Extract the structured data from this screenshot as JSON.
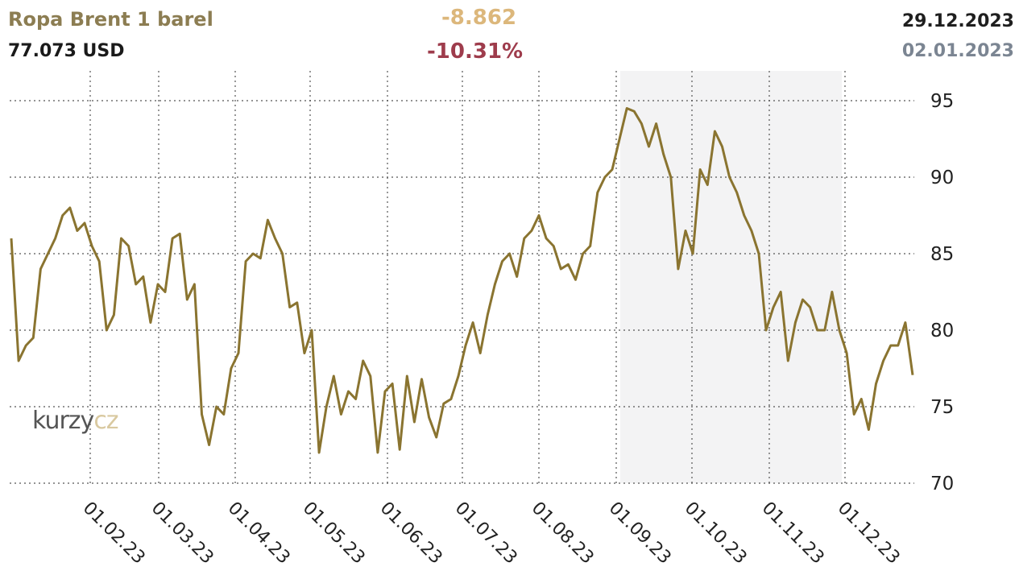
{
  "header": {
    "title": "Ropa Brent 1 barel",
    "price": "77.073 USD",
    "change_abs": "-8.862",
    "change_pct": "-10.31%",
    "date_end": "29.12.2023",
    "date_start": "02.01.2023"
  },
  "watermark": {
    "part1": "kurzy",
    "part2": "cz"
  },
  "colors": {
    "line": "#8a7430",
    "title": "#8c7d52",
    "change_abs": "#dcb77b",
    "change_pct": "#9e3c4c",
    "date_start": "#7b8592"
  },
  "chart_data": {
    "type": "line",
    "title": "Ropa Brent 1 barel",
    "xlabel": "",
    "ylabel": "",
    "ylim": [
      70,
      95
    ],
    "yticks": [
      70,
      75,
      80,
      85,
      90,
      95
    ],
    "y_axis_side": "right",
    "grid": true,
    "x_tick_labels": [
      "01.02.23",
      "01.03.23",
      "01.04.23",
      "01.05.23",
      "01.06.23",
      "01.07.23",
      "01.08.23",
      "01.09.23",
      "01.10.23",
      "01.11.23",
      "01.12.23"
    ],
    "series": [
      {
        "values": [
          86.0,
          78.0,
          79.0,
          79.5,
          84.0,
          85.0,
          86.0,
          87.5,
          88.0,
          86.5,
          87.0,
          85.5,
          84.5,
          80.0,
          81.0,
          86.0,
          85.5,
          83.0,
          83.5,
          80.5,
          83.0,
          82.5,
          86.0,
          86.3,
          82.0,
          83.0,
          74.5,
          72.5,
          75.0,
          74.5,
          77.5,
          78.5,
          84.5,
          85.0,
          84.7,
          87.2,
          86.0,
          85.0,
          81.5,
          81.8,
          78.5,
          80.0,
          72.0,
          75.0,
          77.0,
          74.5,
          76.0,
          75.5,
          78.0,
          77.0,
          72.0,
          76.0,
          76.5,
          72.2,
          77.0,
          74.0,
          76.8,
          74.3,
          73.0,
          75.2,
          75.5,
          77.0,
          79.0,
          80.5,
          78.5,
          81.0,
          83.0,
          84.5,
          85.0,
          83.5,
          86.0,
          86.5,
          87.5,
          86.0,
          85.5,
          84.0,
          84.3,
          83.3,
          85.0,
          85.5,
          89.0,
          90.0,
          90.5,
          92.5,
          94.5,
          94.3,
          93.5,
          92.0,
          93.5,
          91.5,
          90.0,
          84.0,
          86.5,
          85.0,
          90.5,
          89.5,
          93.0,
          92.0,
          90.0,
          89.0,
          87.5,
          86.5,
          85.0,
          80.0,
          81.5,
          82.5,
          78.0,
          80.5,
          82.0,
          81.5,
          80.0,
          80.0,
          82.5,
          80.0,
          78.5,
          74.5,
          75.5,
          73.5,
          76.5,
          78.0,
          79.0,
          79.0,
          80.5,
          77.07
        ]
      }
    ]
  }
}
